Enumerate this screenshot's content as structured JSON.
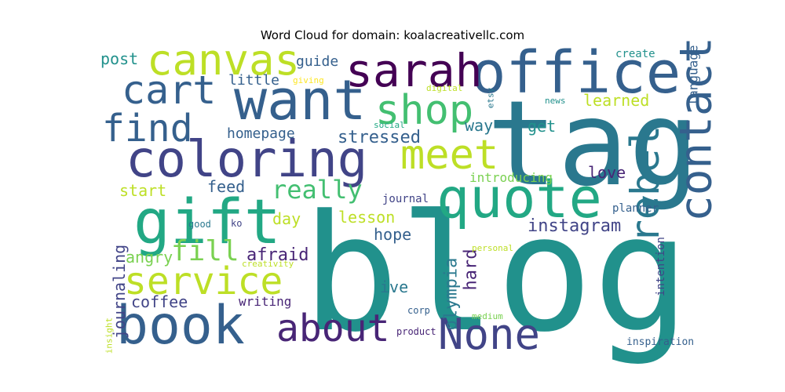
{
  "title": "Word Cloud for domain: koalacreativellc.com",
  "palette": [
    "#440154",
    "#482576",
    "#414487",
    "#35608d",
    "#2a788e",
    "#21918c",
    "#22a884",
    "#43bf71",
    "#7ad151",
    "#bddf26",
    "#fde725"
  ],
  "words": [
    {
      "text": "blog",
      "weight": 100,
      "color": "#21918c",
      "orientation": "horizontal"
    },
    {
      "text": "tag",
      "weight": 82,
      "color": "#2a788e",
      "orientation": "horizontal"
    },
    {
      "text": "office",
      "weight": 52,
      "color": "#35608d",
      "orientation": "horizontal"
    },
    {
      "text": "want",
      "weight": 50,
      "color": "#35608d",
      "orientation": "horizontal"
    },
    {
      "text": "coloring",
      "weight": 49,
      "color": "#414487",
      "orientation": "horizontal"
    },
    {
      "text": "quote",
      "weight": 48,
      "color": "#22a884",
      "orientation": "horizontal"
    },
    {
      "text": "gift",
      "weight": 48,
      "color": "#22a884",
      "orientation": "horizontal"
    },
    {
      "text": "book",
      "weight": 44,
      "color": "#35608d",
      "orientation": "horizontal"
    },
    {
      "text": "canvas",
      "weight": 40,
      "color": "#bddf26",
      "orientation": "horizontal"
    },
    {
      "text": "sarah",
      "weight": 40,
      "color": "#440154",
      "orientation": "horizontal"
    },
    {
      "text": "shop",
      "weight": 38,
      "color": "#43bf71",
      "orientation": "horizontal"
    },
    {
      "text": "contact",
      "weight": 38,
      "color": "#35608d",
      "orientation": "vertical"
    },
    {
      "text": "None",
      "weight": 38,
      "color": "#414487",
      "orientation": "horizontal"
    },
    {
      "text": "service",
      "weight": 36,
      "color": "#bddf26",
      "orientation": "horizontal"
    },
    {
      "text": "meet",
      "weight": 36,
      "color": "#bddf26",
      "orientation": "horizontal"
    },
    {
      "text": "cart",
      "weight": 36,
      "color": "#35608d",
      "orientation": "horizontal"
    },
    {
      "text": "find",
      "weight": 36,
      "color": "#35608d",
      "orientation": "horizontal"
    },
    {
      "text": "about",
      "weight": 32,
      "color": "#482576",
      "orientation": "horizontal"
    },
    {
      "text": "rebel",
      "weight": 32,
      "color": "#2a788e",
      "orientation": "vertical"
    },
    {
      "text": "fill",
      "weight": 24,
      "color": "#7ad151",
      "orientation": "horizontal"
    },
    {
      "text": "really",
      "weight": 22,
      "color": "#43bf71",
      "orientation": "horizontal"
    },
    {
      "text": "instagram",
      "weight": 16,
      "color": "#414487",
      "orientation": "horizontal"
    },
    {
      "text": "olympia",
      "weight": 16,
      "color": "#2a788e",
      "orientation": "vertical"
    },
    {
      "text": "journaling",
      "weight": 15,
      "color": "#414487",
      "orientation": "vertical"
    },
    {
      "text": "stressed",
      "weight": 15,
      "color": "#35608d",
      "orientation": "horizontal"
    },
    {
      "text": "afraid",
      "weight": 15,
      "color": "#482576",
      "orientation": "horizontal"
    },
    {
      "text": "hard",
      "weight": 15,
      "color": "#482576",
      "orientation": "vertical"
    },
    {
      "text": "post",
      "weight": 15,
      "color": "#21918c",
      "orientation": "horizontal"
    },
    {
      "text": "way",
      "weight": 14,
      "color": "#2a788e",
      "orientation": "horizontal"
    },
    {
      "text": "get",
      "weight": 14,
      "color": "#21918c",
      "orientation": "horizontal"
    },
    {
      "text": "learned",
      "weight": 14,
      "color": "#bddf26",
      "orientation": "horizontal"
    },
    {
      "text": "language",
      "weight": 12,
      "color": "#35608d",
      "orientation": "vertical"
    },
    {
      "text": "love",
      "weight": 14,
      "color": "#482576",
      "orientation": "horizontal"
    },
    {
      "text": "start",
      "weight": 14,
      "color": "#bddf26",
      "orientation": "horizontal"
    },
    {
      "text": "lesson",
      "weight": 14,
      "color": "#bddf26",
      "orientation": "horizontal"
    },
    {
      "text": "hope",
      "weight": 14,
      "color": "#35608d",
      "orientation": "horizontal"
    },
    {
      "text": "ive",
      "weight": 14,
      "color": "#2a788e",
      "orientation": "horizontal"
    },
    {
      "text": "angry",
      "weight": 14,
      "color": "#7ad151",
      "orientation": "horizontal"
    },
    {
      "text": "coffee",
      "weight": 14,
      "color": "#414487",
      "orientation": "horizontal"
    },
    {
      "text": "day",
      "weight": 14,
      "color": "#bddf26",
      "orientation": "horizontal"
    },
    {
      "text": "feed",
      "weight": 14,
      "color": "#35608d",
      "orientation": "horizontal"
    },
    {
      "text": "homepage",
      "weight": 13,
      "color": "#35608d",
      "orientation": "horizontal"
    },
    {
      "text": "guide",
      "weight": 13,
      "color": "#35608d",
      "orientation": "horizontal"
    },
    {
      "text": "little",
      "weight": 13,
      "color": "#35608d",
      "orientation": "horizontal"
    },
    {
      "text": "introducing",
      "weight": 11,
      "color": "#7ad151",
      "orientation": "horizontal"
    },
    {
      "text": "writing",
      "weight": 11,
      "color": "#482576",
      "orientation": "horizontal"
    },
    {
      "text": "intention",
      "weight": 10,
      "color": "#414487",
      "orientation": "vertical"
    },
    {
      "text": "create",
      "weight": 10,
      "color": "#21918c",
      "orientation": "horizontal"
    },
    {
      "text": "planner",
      "weight": 10,
      "color": "#35608d",
      "orientation": "horizontal"
    },
    {
      "text": "journal",
      "weight": 10,
      "color": "#414487",
      "orientation": "horizontal"
    },
    {
      "text": "inspiration",
      "weight": 9,
      "color": "#35608d",
      "orientation": "horizontal"
    },
    {
      "text": "corp",
      "weight": 8,
      "color": "#35608d",
      "orientation": "horizontal"
    },
    {
      "text": "product",
      "weight": 8,
      "color": "#482576",
      "orientation": "horizontal"
    },
    {
      "text": "ko",
      "weight": 8,
      "color": "#414487",
      "orientation": "horizontal"
    },
    {
      "text": "personal",
      "weight": 8,
      "color": "#bddf26",
      "orientation": "horizontal"
    },
    {
      "text": "medium",
      "weight": 8,
      "color": "#7ad151",
      "orientation": "horizontal"
    },
    {
      "text": "creativity",
      "weight": 8,
      "color": "#bddf26",
      "orientation": "horizontal"
    },
    {
      "text": "good",
      "weight": 8,
      "color": "#2a788e",
      "orientation": "horizontal"
    },
    {
      "text": "social",
      "weight": 8,
      "color": "#22a884",
      "orientation": "horizontal"
    },
    {
      "text": "news",
      "weight": 8,
      "color": "#21918c",
      "orientation": "horizontal"
    },
    {
      "text": "digital",
      "weight": 8,
      "color": "#bddf26",
      "orientation": "horizontal"
    },
    {
      "text": "giving",
      "weight": 8,
      "color": "#fde725",
      "orientation": "horizontal"
    },
    {
      "text": "etsy",
      "weight": 8,
      "color": "#2a788e",
      "orientation": "vertical"
    },
    {
      "text": "insight",
      "weight": 8,
      "color": "#bddf26",
      "orientation": "vertical"
    }
  ]
}
